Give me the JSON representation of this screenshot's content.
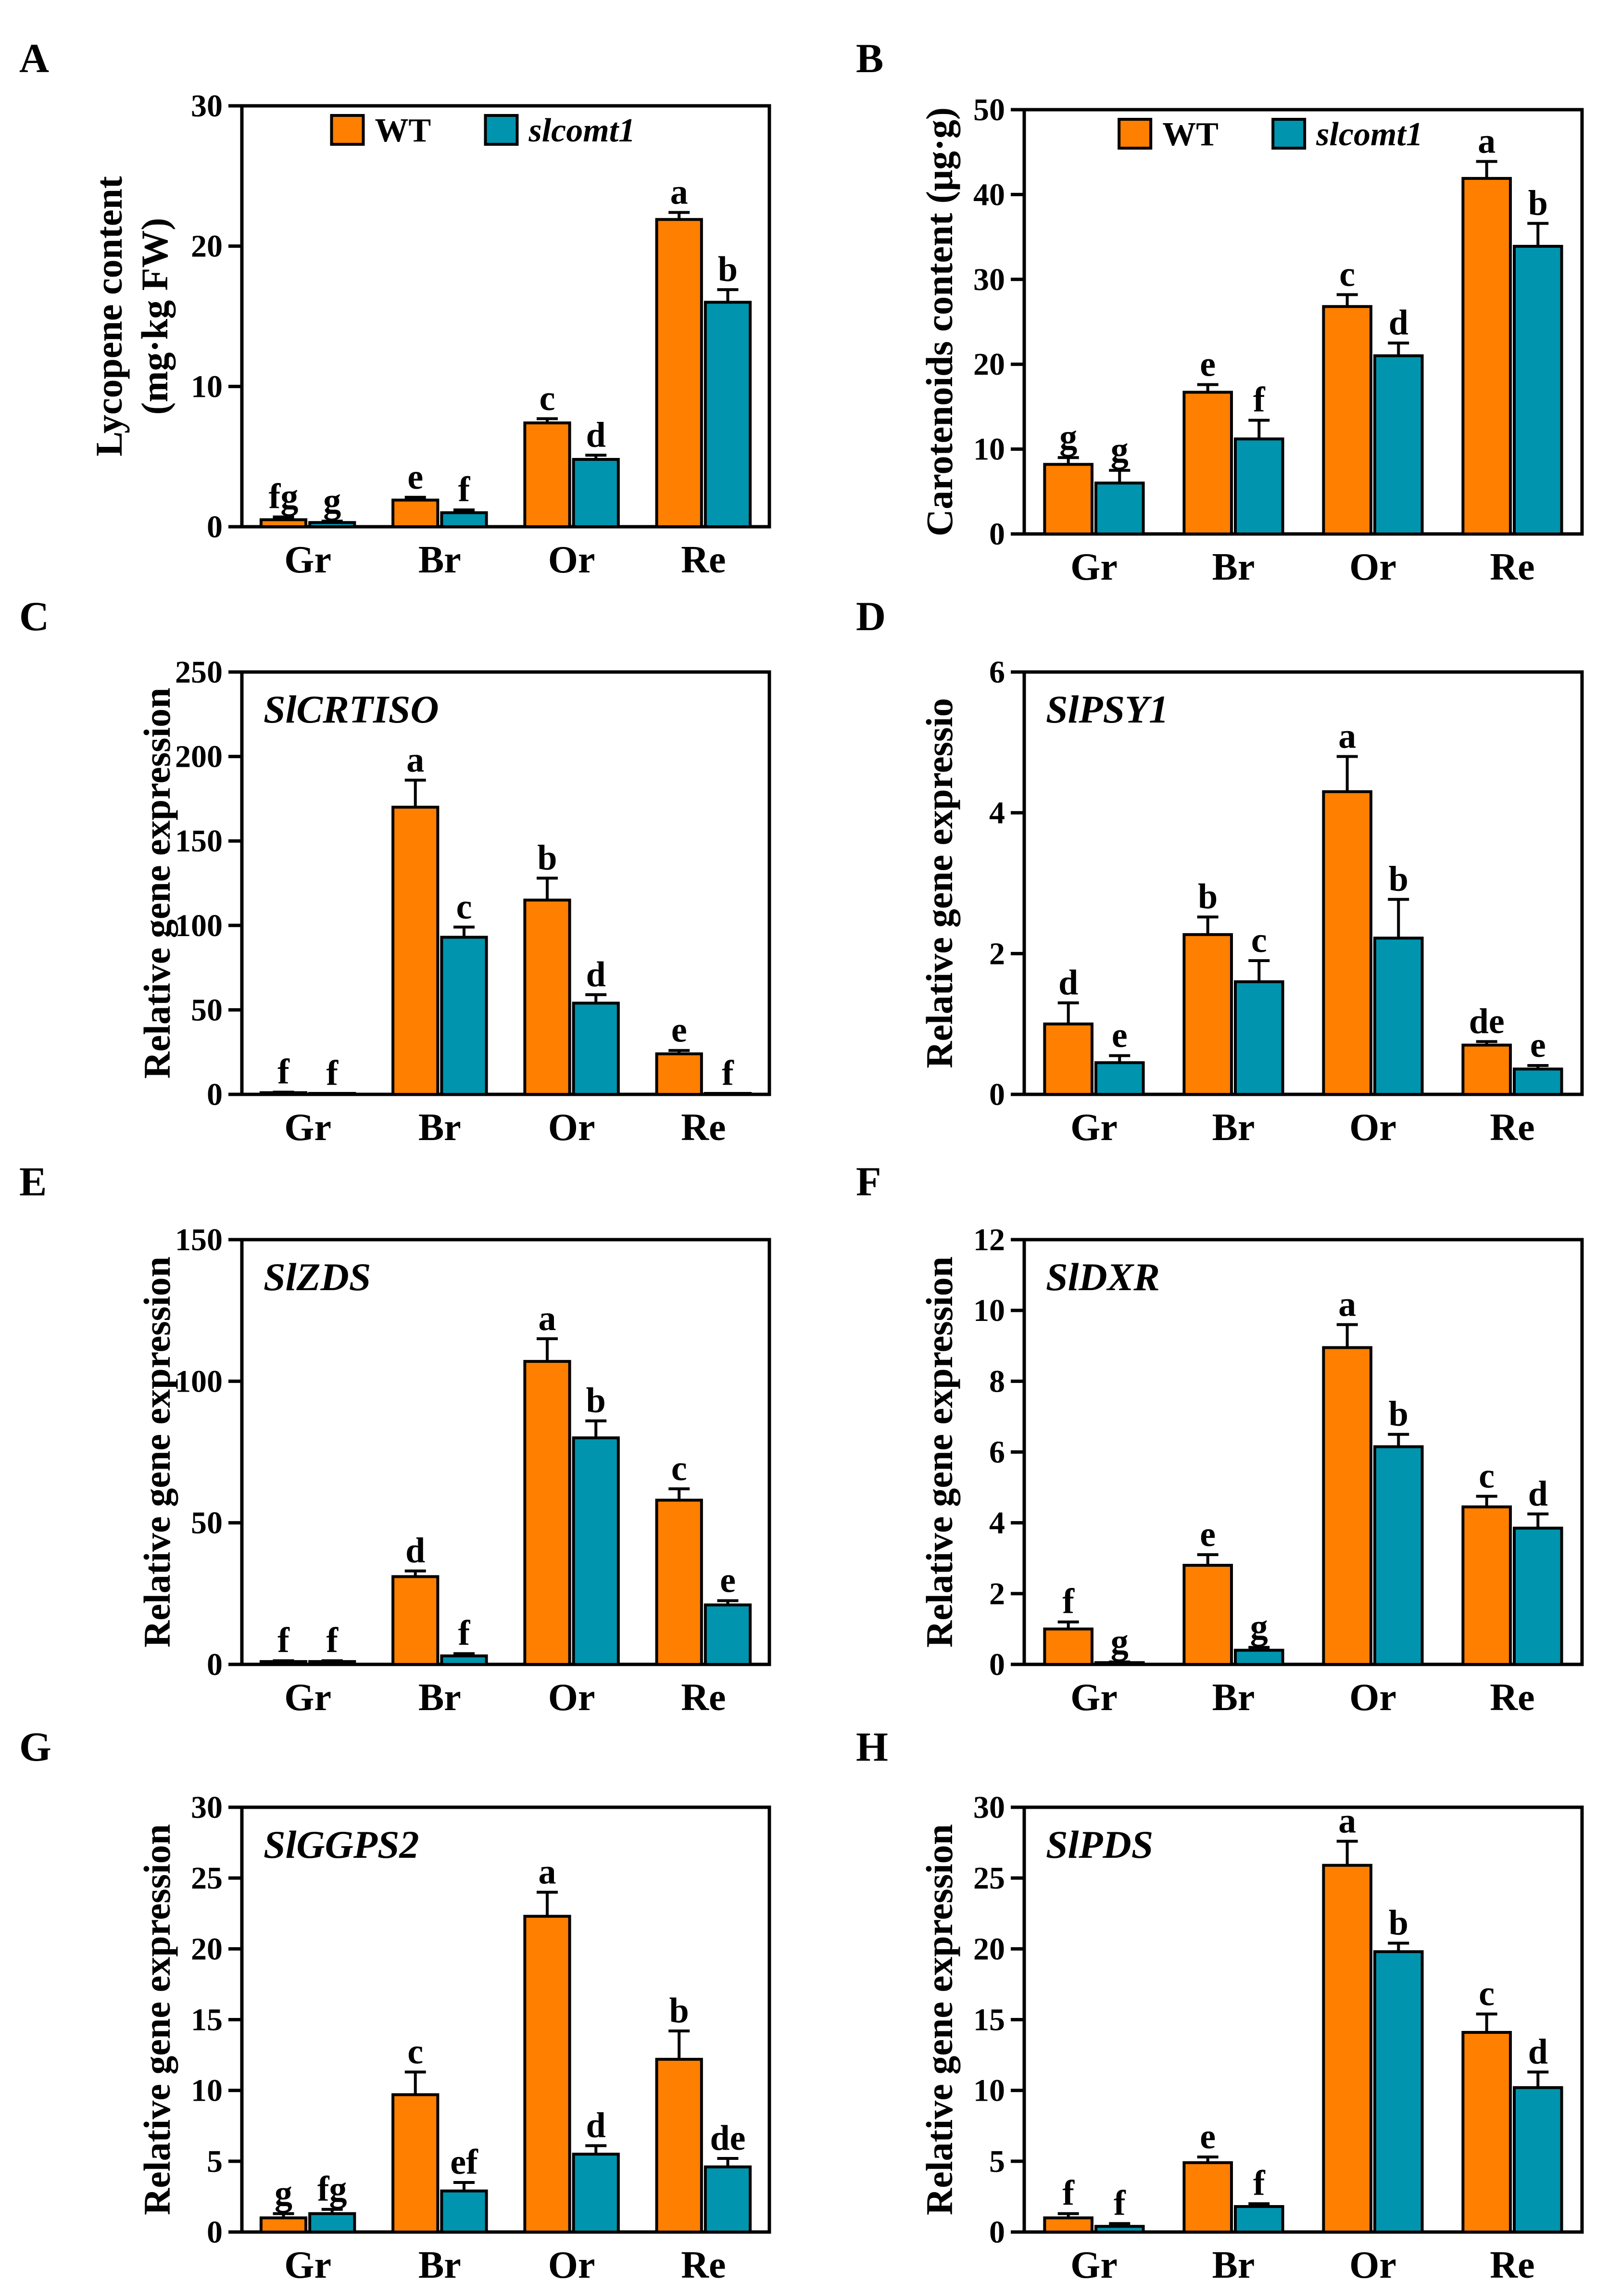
{
  "colors": {
    "wt": "#ff7f00",
    "mutant": "#0094ae",
    "outline": "#000000"
  },
  "legend": {
    "wt_label": "WT",
    "mutant_label": "slcomt1"
  },
  "chart_data": [
    {
      "panel": "A",
      "type": "bar",
      "title": "",
      "xlabel": "",
      "ylabel": [
        "Lycopene content",
        "(mg·kg FW)"
      ],
      "ylim": [
        0,
        30
      ],
      "yticks": [
        0,
        10,
        20,
        30
      ],
      "categories": [
        "Gr",
        "Br",
        "Or",
        "Re"
      ],
      "series": [
        {
          "name": "WT",
          "values": [
            0.5,
            1.9,
            7.4,
            21.9
          ],
          "errors": [
            0.2,
            0.2,
            0.3,
            0.5
          ],
          "letters": [
            "fg",
            "e",
            "c",
            "a"
          ]
        },
        {
          "name": "slcomt1",
          "values": [
            0.3,
            1.0,
            4.8,
            16.0
          ],
          "errors": [
            0.1,
            0.2,
            0.3,
            0.9
          ],
          "letters": [
            "g",
            "f",
            "d",
            "b"
          ]
        }
      ],
      "legend_shown": true
    },
    {
      "panel": "B",
      "type": "bar",
      "title": "",
      "xlabel": "",
      "ylabel": [
        "Carotenoids content (μg·g)"
      ],
      "ylim": [
        0,
        50
      ],
      "yticks": [
        0,
        10,
        20,
        30,
        40,
        50
      ],
      "categories": [
        "Gr",
        "Br",
        "Or",
        "Re"
      ],
      "series": [
        {
          "name": "WT",
          "values": [
            8.2,
            16.7,
            26.8,
            41.9
          ],
          "errors": [
            0.8,
            0.9,
            1.4,
            2.0
          ],
          "letters": [
            "g",
            "e",
            "c",
            "a"
          ]
        },
        {
          "name": "slcomt1",
          "values": [
            6.0,
            11.2,
            21.0,
            33.9
          ],
          "errors": [
            1.5,
            2.2,
            1.5,
            2.7
          ],
          "letters": [
            "g",
            "f",
            "d",
            "b"
          ]
        }
      ],
      "legend_shown": true
    },
    {
      "panel": "C",
      "type": "bar",
      "title": "SlCRTISO",
      "xlabel": "",
      "ylabel": [
        "Relative gene expression"
      ],
      "ylim": [
        0,
        250
      ],
      "yticks": [
        0,
        50,
        100,
        150,
        200,
        250
      ],
      "categories": [
        "Gr",
        "Br",
        "Or",
        "Re"
      ],
      "series": [
        {
          "name": "WT",
          "values": [
            1,
            170,
            115,
            24
          ],
          "errors": [
            0.3,
            16,
            13,
            2
          ],
          "letters": [
            "f",
            "a",
            "b",
            "e"
          ]
        },
        {
          "name": "slcomt1",
          "values": [
            0.3,
            93,
            54,
            0.3
          ],
          "errors": [
            0.1,
            6,
            5,
            0.1
          ],
          "letters": [
            "f",
            "c",
            "d",
            "f"
          ]
        }
      ],
      "legend_shown": false
    },
    {
      "panel": "D",
      "type": "bar",
      "title": "SlPSY1",
      "xlabel": "",
      "ylabel": [
        "Relative gene expressio"
      ],
      "ylim": [
        0,
        6
      ],
      "yticks": [
        0,
        2,
        4,
        6
      ],
      "categories": [
        "Gr",
        "Br",
        "Or",
        "Re"
      ],
      "series": [
        {
          "name": "WT",
          "values": [
            1.0,
            2.27,
            4.3,
            0.7
          ],
          "errors": [
            0.3,
            0.25,
            0.5,
            0.05
          ],
          "letters": [
            "d",
            "b",
            "a",
            "de"
          ]
        },
        {
          "name": "slcomt1",
          "values": [
            0.45,
            1.6,
            2.22,
            0.36
          ],
          "errors": [
            0.1,
            0.3,
            0.55,
            0.05
          ],
          "letters": [
            "e",
            "c",
            "b",
            "e"
          ]
        }
      ],
      "legend_shown": false
    },
    {
      "panel": "E",
      "type": "bar",
      "title": "SlZDS",
      "xlabel": "",
      "ylabel": [
        "Relative gene expression"
      ],
      "ylim": [
        0,
        150
      ],
      "yticks": [
        0,
        50,
        100,
        150
      ],
      "categories": [
        "Gr",
        "Br",
        "Or",
        "Re"
      ],
      "series": [
        {
          "name": "WT",
          "values": [
            1,
            31,
            107,
            58
          ],
          "errors": [
            0.3,
            2,
            8,
            4
          ],
          "letters": [
            "f",
            "d",
            "a",
            "c"
          ]
        },
        {
          "name": "slcomt1",
          "values": [
            1,
            3,
            80,
            21
          ],
          "errors": [
            0.3,
            0.8,
            6,
            1.5
          ],
          "letters": [
            "f",
            "f",
            "b",
            "e"
          ]
        }
      ],
      "legend_shown": false
    },
    {
      "panel": "F",
      "type": "bar",
      "title": "SlDXR",
      "xlabel": "",
      "ylabel": [
        "Relative gene expression"
      ],
      "ylim": [
        0,
        12
      ],
      "yticks": [
        0,
        2,
        4,
        6,
        8,
        10,
        12
      ],
      "categories": [
        "Gr",
        "Br",
        "Or",
        "Re"
      ],
      "series": [
        {
          "name": "WT",
          "values": [
            1.0,
            2.8,
            8.95,
            4.45
          ],
          "errors": [
            0.2,
            0.3,
            0.65,
            0.3
          ],
          "letters": [
            "f",
            "e",
            "a",
            "c"
          ]
        },
        {
          "name": "slcomt1",
          "values": [
            0.05,
            0.4,
            6.15,
            3.85
          ],
          "errors": [
            0.02,
            0.08,
            0.35,
            0.4
          ],
          "letters": [
            "g",
            "g",
            "b",
            "d"
          ]
        }
      ],
      "legend_shown": false
    },
    {
      "panel": "G",
      "type": "bar",
      "title": "SlGGPS2",
      "xlabel": "",
      "ylabel": [
        "Relative gene expression"
      ],
      "ylim": [
        0,
        30
      ],
      "yticks": [
        0,
        5,
        10,
        15,
        20,
        25,
        30
      ],
      "categories": [
        "Gr",
        "Br",
        "Or",
        "Re"
      ],
      "series": [
        {
          "name": "WT",
          "values": [
            1.0,
            9.7,
            22.3,
            12.2
          ],
          "errors": [
            0.3,
            1.6,
            1.7,
            2.0
          ],
          "letters": [
            "g",
            "c",
            "a",
            "b"
          ]
        },
        {
          "name": "slcomt1",
          "values": [
            1.3,
            2.9,
            5.5,
            4.6
          ],
          "errors": [
            0.3,
            0.6,
            0.6,
            0.6
          ],
          "letters": [
            "fg",
            "ef",
            "d",
            "de"
          ]
        }
      ],
      "legend_shown": false
    },
    {
      "panel": "H",
      "type": "bar",
      "title": "SlPDS",
      "xlabel": "",
      "ylabel": [
        "Relative gene expression"
      ],
      "ylim": [
        0,
        30
      ],
      "yticks": [
        0,
        5,
        10,
        15,
        20,
        25,
        30
      ],
      "categories": [
        "Gr",
        "Br",
        "Or",
        "Re"
      ],
      "series": [
        {
          "name": "WT",
          "values": [
            1.0,
            4.9,
            25.9,
            14.1
          ],
          "errors": [
            0.3,
            0.4,
            1.7,
            1.3
          ],
          "letters": [
            "f",
            "e",
            "a",
            "c"
          ]
        },
        {
          "name": "slcomt1",
          "values": [
            0.4,
            1.8,
            19.8,
            10.2
          ],
          "errors": [
            0.2,
            0.2,
            0.6,
            1.1
          ],
          "letters": [
            "f",
            "f",
            "b",
            "d"
          ]
        }
      ],
      "legend_shown": false
    }
  ]
}
